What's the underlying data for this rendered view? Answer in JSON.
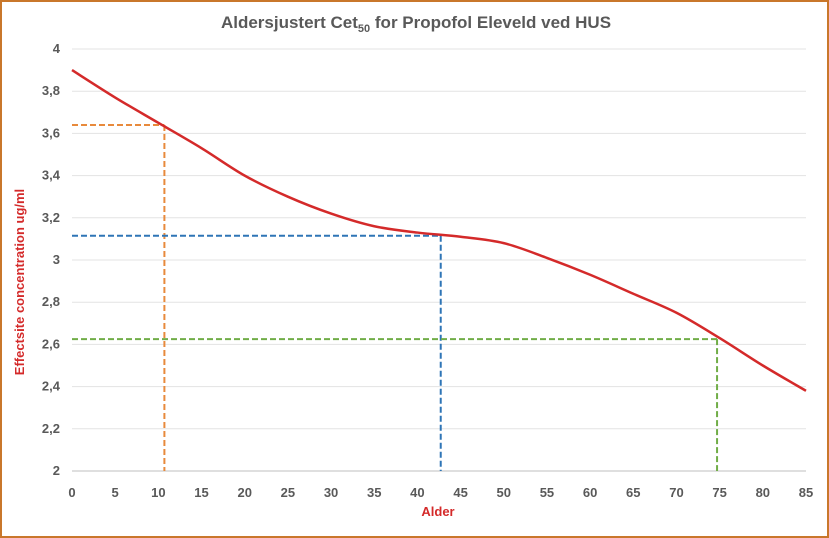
{
  "chart_data": {
    "type": "line",
    "title": "Aldersjustert Cet",
    "title_subscript": "50",
    "title_suffix": " for Propofol Eleveld ved HUS",
    "xlabel": "Alder",
    "ylabel": "Effectsite concentration ug/ml",
    "xlim": [
      0,
      85
    ],
    "ylim": [
      2,
      4
    ],
    "x_ticks": [
      0,
      5,
      10,
      15,
      20,
      25,
      30,
      35,
      40,
      45,
      50,
      55,
      60,
      65,
      70,
      75,
      80,
      85
    ],
    "y_ticks": [
      "2",
      "2,2",
      "2,4",
      "2,6",
      "2,8",
      "3",
      "3,2",
      "3,4",
      "3,6",
      "3,8",
      "4"
    ],
    "grid": "horizontal",
    "series": [
      {
        "color": "#d42a2a",
        "x": [
          0,
          5,
          10,
          15,
          20,
          25,
          30,
          35,
          40,
          45,
          50,
          55,
          60,
          65,
          70,
          75,
          80,
          85
        ],
        "y": [
          3.9,
          3.77,
          3.65,
          3.53,
          3.4,
          3.3,
          3.22,
          3.16,
          3.13,
          3.11,
          3.08,
          3.01,
          2.93,
          2.84,
          2.75,
          2.63,
          2.5,
          2.38
        ]
      }
    ],
    "reference_lines": [
      {
        "color": "#e88a3c",
        "x": 10.7,
        "y": 3.64
      },
      {
        "color": "#2e75b6",
        "x": 42.7,
        "y": 3.115
      },
      {
        "color": "#70ad47",
        "x": 74.7,
        "y": 2.625
      }
    ]
  }
}
